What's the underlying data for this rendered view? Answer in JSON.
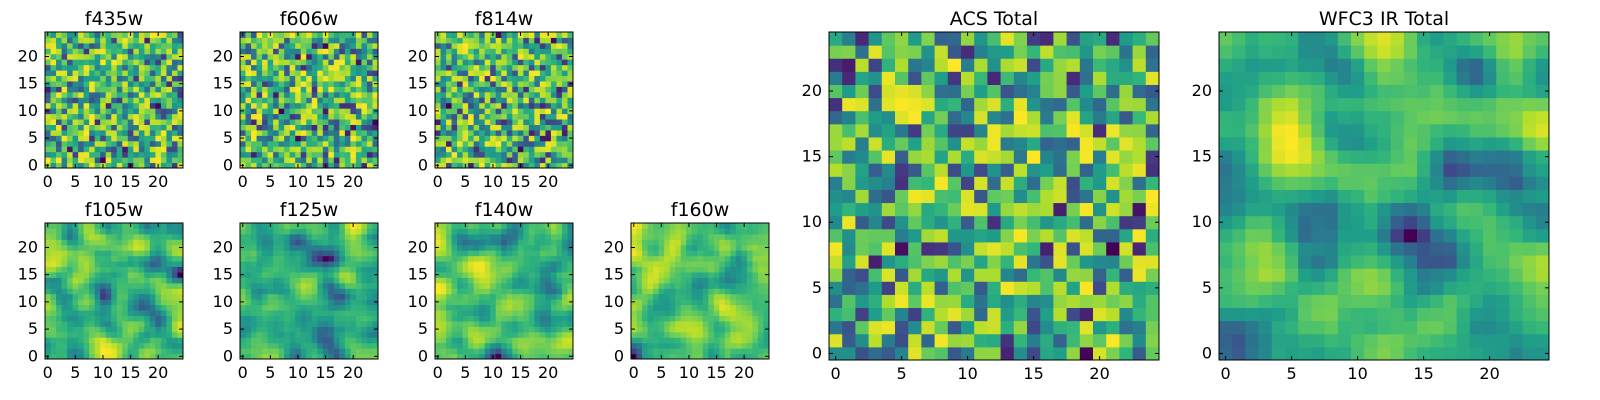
{
  "chart_data": [
    {
      "type": "heatmap",
      "title": "f435w",
      "xlim": [
        -0.5,
        24.5
      ],
      "ylim": [
        -0.5,
        24.5
      ],
      "xticks": [
        "0",
        "5",
        "10",
        "15",
        "20"
      ],
      "yticks": [
        "0",
        "5",
        "10",
        "15",
        "20"
      ],
      "grid_size": 25,
      "colormap": "viridis",
      "texture": "uniform-noise"
    },
    {
      "type": "heatmap",
      "title": "f606w",
      "xlim": [
        -0.5,
        24.5
      ],
      "ylim": [
        -0.5,
        24.5
      ],
      "xticks": [
        "0",
        "5",
        "10",
        "15",
        "20"
      ],
      "yticks": [
        "0",
        "5",
        "10",
        "15",
        "20"
      ],
      "grid_size": 25,
      "colormap": "viridis",
      "texture": "uniform-noise"
    },
    {
      "type": "heatmap",
      "title": "f814w",
      "xlim": [
        -0.5,
        24.5
      ],
      "ylim": [
        -0.5,
        24.5
      ],
      "xticks": [
        "0",
        "5",
        "10",
        "15",
        "20"
      ],
      "yticks": [
        "0",
        "5",
        "10",
        "15",
        "20"
      ],
      "grid_size": 25,
      "colormap": "viridis",
      "texture": "uniform-noise"
    },
    {
      "type": "heatmap",
      "title": "f105w",
      "xlim": [
        -0.5,
        24.5
      ],
      "ylim": [
        -0.5,
        24.5
      ],
      "xticks": [
        "0",
        "5",
        "10",
        "15",
        "20"
      ],
      "yticks": [
        "0",
        "5",
        "10",
        "15",
        "20"
      ],
      "grid_size": 25,
      "colormap": "viridis",
      "texture": "smooth-noise"
    },
    {
      "type": "heatmap",
      "title": "f125w",
      "xlim": [
        -0.5,
        24.5
      ],
      "ylim": [
        -0.5,
        24.5
      ],
      "xticks": [
        "0",
        "5",
        "10",
        "15",
        "20"
      ],
      "yticks": [
        "0",
        "5",
        "10",
        "15",
        "20"
      ],
      "grid_size": 25,
      "colormap": "viridis",
      "texture": "smooth-noise"
    },
    {
      "type": "heatmap",
      "title": "f140w",
      "xlim": [
        -0.5,
        24.5
      ],
      "ylim": [
        -0.5,
        24.5
      ],
      "xticks": [
        "0",
        "5",
        "10",
        "15",
        "20"
      ],
      "yticks": [
        "0",
        "5",
        "10",
        "15",
        "20"
      ],
      "grid_size": 25,
      "colormap": "viridis",
      "texture": "smooth-noise"
    },
    {
      "type": "heatmap",
      "title": "f160w",
      "xlim": [
        -0.5,
        24.5
      ],
      "ylim": [
        -0.5,
        24.5
      ],
      "xticks": [
        "0",
        "5",
        "10",
        "15",
        "20"
      ],
      "yticks": [
        "0",
        "5",
        "10",
        "15",
        "20"
      ],
      "grid_size": 25,
      "colormap": "viridis",
      "texture": "smooth-noise"
    },
    {
      "type": "heatmap",
      "title": "ACS Total",
      "xlim": [
        -0.5,
        24.5
      ],
      "ylim": [
        -0.5,
        24.5
      ],
      "xticks": [
        "0",
        "5",
        "10",
        "15",
        "20"
      ],
      "yticks": [
        "0",
        "5",
        "10",
        "15",
        "20"
      ],
      "grid_size": 25,
      "colormap": "viridis",
      "texture": "uniform-noise"
    },
    {
      "type": "heatmap",
      "title": "WFC3 IR Total",
      "xlim": [
        -0.5,
        24.5
      ],
      "ylim": [
        -0.5,
        24.5
      ],
      "xticks": [
        "0",
        "5",
        "10",
        "15",
        "20"
      ],
      "yticks": [
        "0",
        "5",
        "10",
        "15",
        "20"
      ],
      "grid_size": 25,
      "colormap": "viridis",
      "texture": "smooth-noise"
    }
  ]
}
